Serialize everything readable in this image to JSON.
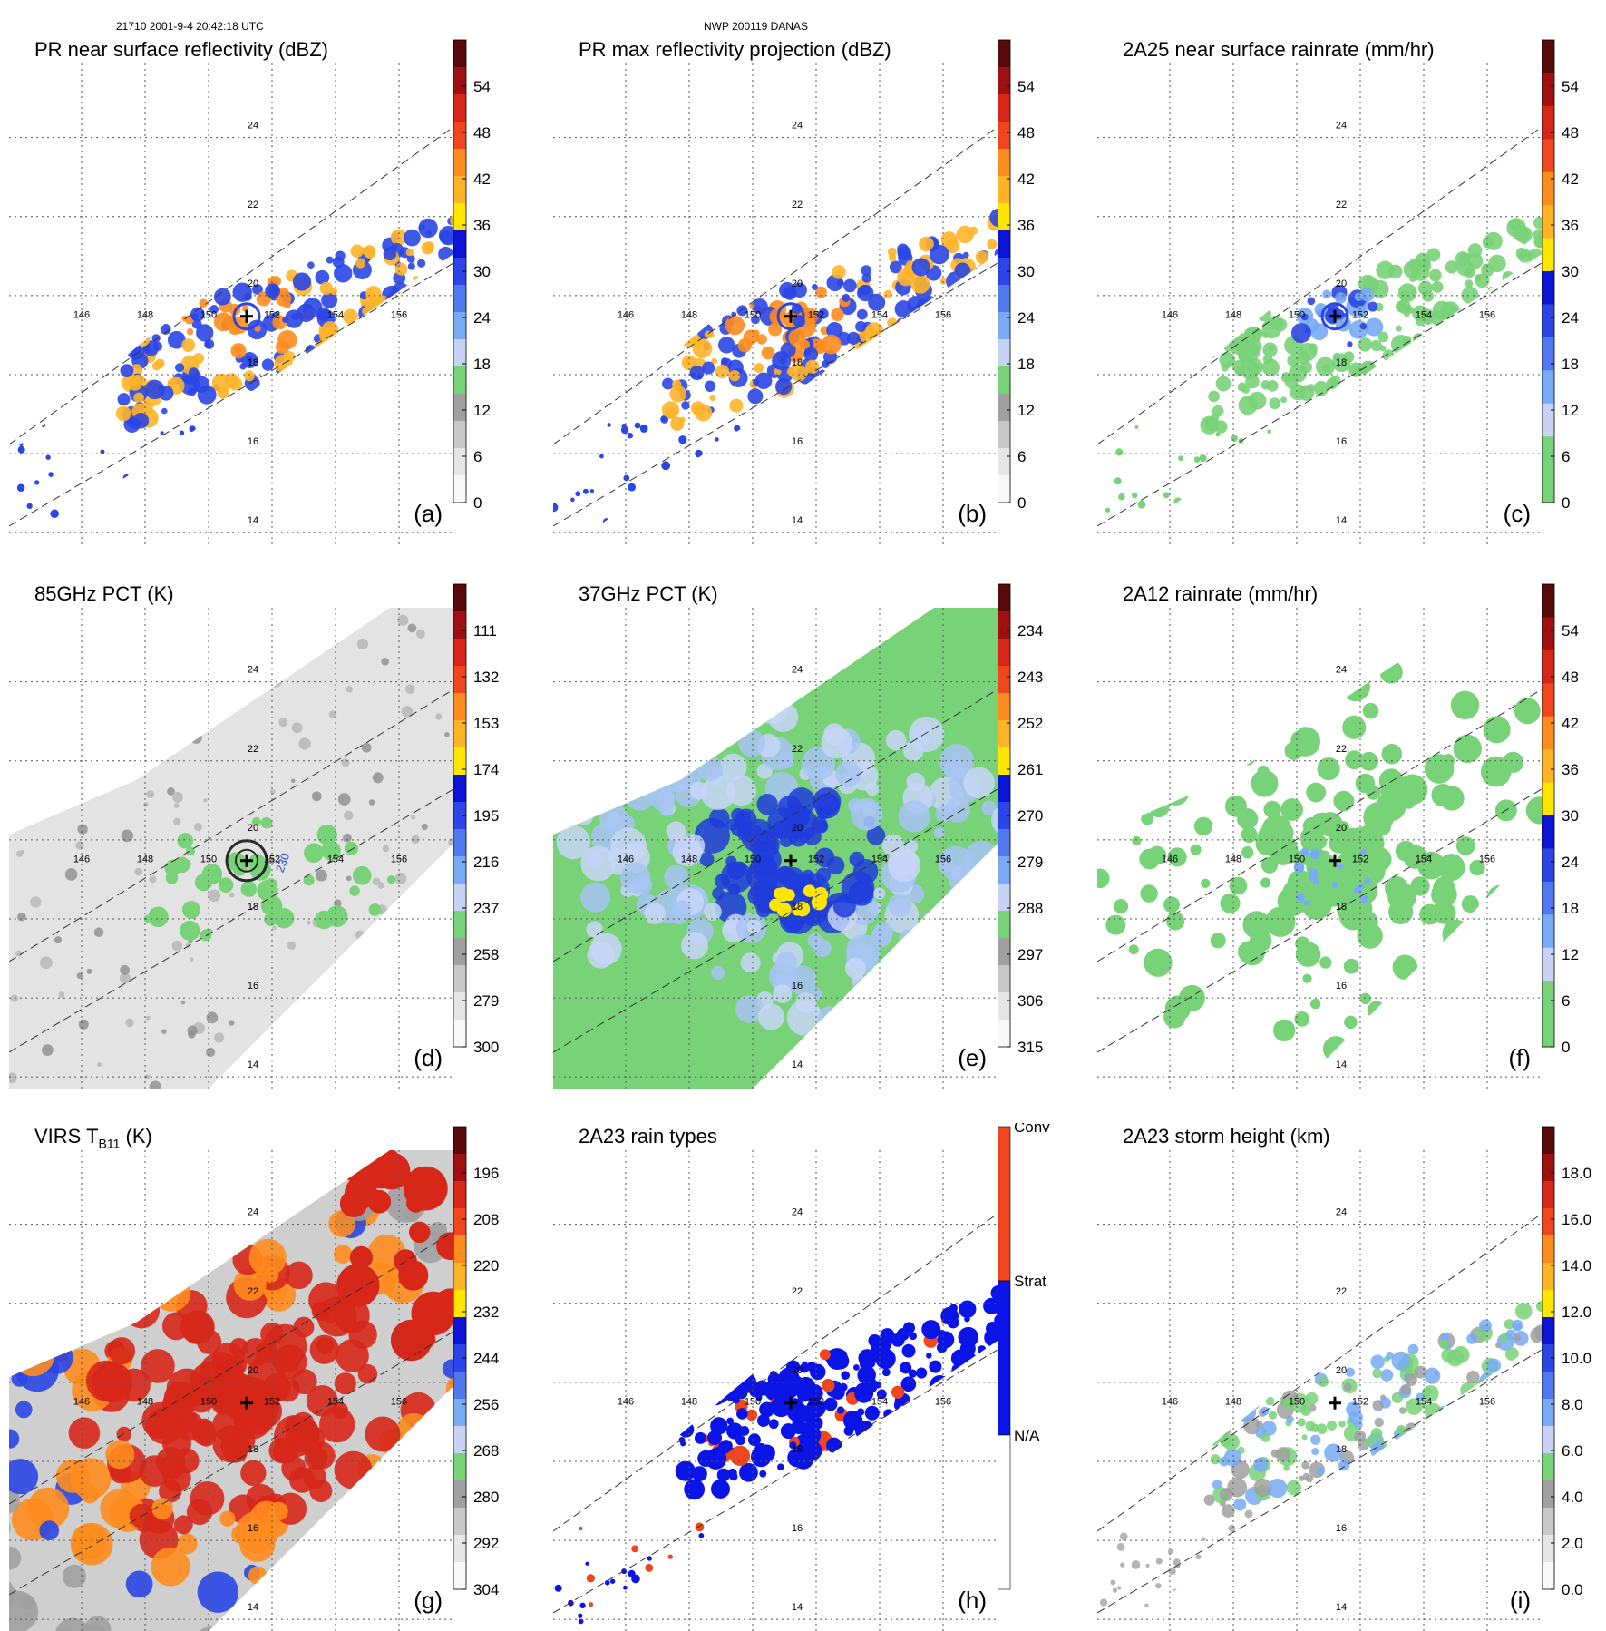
{
  "header": {
    "left": "21710 2001-9-4 20:42:18 UTC",
    "center": "NWP 200119 DANAS"
  },
  "colors": {
    "dark_red": "#5a0a0a",
    "red": "#d62718",
    "orange_red": "#f0461e",
    "orange": "#ff8c1e",
    "yellow": "#ffe600",
    "blue_dark": "#0a14d2",
    "blue": "#2a46e6",
    "blue_light": "#78aaf5",
    "blue_pale": "#c8d2f5",
    "green": "#78d278",
    "gray": "#a0a0a0",
    "gray_light": "#e6e6e6"
  },
  "chart_data": [
    {
      "id": "a",
      "type": "heatmap",
      "title": "PR near surface reflectivity (dBZ)",
      "label": "(a)",
      "swath": "narrow",
      "lon_ticks": [
        "146",
        "148",
        "150",
        "152",
        "154",
        "156"
      ],
      "lat_ticks": [
        "24",
        "22",
        "20",
        "18",
        "16",
        "14"
      ],
      "storm_center": {
        "lon": 151.2,
        "lat": 19.2
      },
      "colorbar": {
        "ticks": [
          "54",
          "48",
          "42",
          "36",
          "30",
          "24",
          "18",
          "12",
          "6",
          "0"
        ],
        "colors": [
          "#5a0a0a",
          "#a01010",
          "#d62718",
          "#f0461e",
          "#ff8c1e",
          "#ffb428",
          "#ffe600",
          "#0a14d2",
          "#2a46e6",
          "#5078f0",
          "#78aaf5",
          "#c8d2f5",
          "#78d278",
          "#a0a0a0",
          "#c8c8c8",
          "#e6e6e6",
          "#f8f8f8"
        ]
      }
    },
    {
      "id": "b",
      "type": "heatmap",
      "title": "PR max reflectivity projection (dBZ)",
      "label": "(b)",
      "swath": "narrow",
      "lon_ticks": [
        "146",
        "148",
        "150",
        "152",
        "154",
        "156"
      ],
      "lat_ticks": [
        "24",
        "22",
        "20",
        "18",
        "16",
        "14"
      ],
      "storm_center": {
        "lon": 151.2,
        "lat": 19.2
      },
      "colorbar": {
        "ticks": [
          "54",
          "48",
          "42",
          "36",
          "30",
          "24",
          "18",
          "12",
          "6",
          "0"
        ],
        "colors": [
          "#5a0a0a",
          "#a01010",
          "#d62718",
          "#f0461e",
          "#ff8c1e",
          "#ffb428",
          "#ffe600",
          "#0a14d2",
          "#2a46e6",
          "#5078f0",
          "#78aaf5",
          "#c8d2f5",
          "#78d278",
          "#a0a0a0",
          "#c8c8c8",
          "#e6e6e6",
          "#f8f8f8"
        ]
      }
    },
    {
      "id": "c",
      "type": "heatmap",
      "title": "2A25 near surface rainrate (mm/hr)",
      "label": "(c)",
      "swath": "narrow",
      "lon_ticks": [
        "146",
        "148",
        "150",
        "152",
        "154",
        "156"
      ],
      "lat_ticks": [
        "24",
        "22",
        "20",
        "18",
        "16",
        "14"
      ],
      "storm_center": {
        "lon": 151.2,
        "lat": 19.2
      },
      "colorbar": {
        "ticks": [
          "54",
          "48",
          "42",
          "36",
          "30",
          "24",
          "18",
          "12",
          "6",
          "0"
        ],
        "colors": [
          "#5a0a0a",
          "#a01010",
          "#d62718",
          "#f0461e",
          "#ff8c1e",
          "#ffb428",
          "#ffe600",
          "#0a14d2",
          "#2a46e6",
          "#5078f0",
          "#78aaf5",
          "#c8d2f5",
          "#78d278",
          "#78d278"
        ]
      }
    },
    {
      "id": "d",
      "type": "heatmap",
      "title": "85GHz PCT (K)",
      "label": "(d)",
      "swath": "wide",
      "lon_ticks": [
        "146",
        "148",
        "150",
        "152",
        "154",
        "156"
      ],
      "lat_ticks": [
        "24",
        "22",
        "20",
        "18",
        "16",
        "14"
      ],
      "storm_center": {
        "lon": 151.2,
        "lat": 19.2
      },
      "contour_annotation": "230",
      "colorbar": {
        "ticks": [
          "111",
          "132",
          "153",
          "174",
          "195",
          "216",
          "237",
          "258",
          "279",
          "300"
        ],
        "colors": [
          "#5a0a0a",
          "#a01010",
          "#d62718",
          "#f0461e",
          "#ff8c1e",
          "#ffb428",
          "#ffe600",
          "#0a14d2",
          "#2a46e6",
          "#5078f0",
          "#78aaf5",
          "#c8d2f5",
          "#78d278",
          "#a0a0a0",
          "#c8c8c8",
          "#e6e6e6",
          "#f8f8f8"
        ]
      }
    },
    {
      "id": "e",
      "type": "heatmap",
      "title": "37GHz PCT (K)",
      "label": "(e)",
      "swath": "wide",
      "lon_ticks": [
        "146",
        "148",
        "150",
        "152",
        "154",
        "156"
      ],
      "lat_ticks": [
        "24",
        "22",
        "20",
        "18",
        "16",
        "14"
      ],
      "storm_center": {
        "lon": 151.2,
        "lat": 19.2
      },
      "colorbar": {
        "ticks": [
          "234",
          "243",
          "252",
          "261",
          "270",
          "279",
          "288",
          "297",
          "306",
          "315"
        ],
        "colors": [
          "#5a0a0a",
          "#a01010",
          "#d62718",
          "#f0461e",
          "#ff8c1e",
          "#ffb428",
          "#ffe600",
          "#0a14d2",
          "#2a46e6",
          "#5078f0",
          "#78aaf5",
          "#c8d2f5",
          "#78d278",
          "#a0a0a0",
          "#c8c8c8",
          "#e6e6e6",
          "#f8f8f8"
        ]
      }
    },
    {
      "id": "f",
      "type": "heatmap",
      "title": "2A12 rainrate (mm/hr)",
      "label": "(f)",
      "swath": "wide",
      "lon_ticks": [
        "146",
        "148",
        "150",
        "152",
        "154",
        "156"
      ],
      "lat_ticks": [
        "24",
        "22",
        "20",
        "18",
        "16",
        "14"
      ],
      "storm_center": {
        "lon": 151.2,
        "lat": 19.2
      },
      "colorbar": {
        "ticks": [
          "54",
          "48",
          "42",
          "36",
          "30",
          "24",
          "18",
          "12",
          "6",
          "0"
        ],
        "colors": [
          "#5a0a0a",
          "#a01010",
          "#d62718",
          "#f0461e",
          "#ff8c1e",
          "#ffb428",
          "#ffe600",
          "#0a14d2",
          "#2a46e6",
          "#5078f0",
          "#78aaf5",
          "#c8d2f5",
          "#78d278",
          "#78d278"
        ]
      }
    },
    {
      "id": "g",
      "type": "heatmap",
      "title": "VIRS T",
      "title_sub": "B11",
      "title_unit": " (K)",
      "label": "(g)",
      "swath": "wide",
      "lon_ticks": [
        "146",
        "148",
        "150",
        "152",
        "154",
        "156"
      ],
      "lat_ticks": [
        "24",
        "22",
        "20",
        "18",
        "16",
        "14"
      ],
      "storm_center": {
        "lon": 151.2,
        "lat": 19.2
      },
      "colorbar": {
        "ticks": [
          "196",
          "208",
          "220",
          "232",
          "244",
          "256",
          "268",
          "280",
          "292",
          "304"
        ],
        "colors": [
          "#5a0a0a",
          "#a01010",
          "#d62718",
          "#f0461e",
          "#ff8c1e",
          "#ffb428",
          "#ffe600",
          "#0a14d2",
          "#2a46e6",
          "#5078f0",
          "#78aaf5",
          "#c8d2f5",
          "#78d278",
          "#a0a0a0",
          "#c8c8c8",
          "#e6e6e6",
          "#f8f8f8"
        ]
      }
    },
    {
      "id": "h",
      "type": "heatmap",
      "title": "2A23 rain types",
      "label": "(h)",
      "swath": "narrow",
      "lon_ticks": [
        "146",
        "148",
        "150",
        "152",
        "154",
        "156"
      ],
      "lat_ticks": [
        "24",
        "22",
        "20",
        "18",
        "16",
        "14"
      ],
      "storm_center": {
        "lon": 151.2,
        "lat": 19.2
      },
      "colorbar": {
        "categorical": true,
        "ticks": [
          "Conv",
          "Strat",
          "N/A"
        ],
        "colors": [
          "#f0461e",
          "#0a14e6",
          "#ffffff"
        ]
      }
    },
    {
      "id": "i",
      "type": "heatmap",
      "title": "2A23 storm height (km)",
      "label": "(i)",
      "swath": "narrow",
      "lon_ticks": [
        "146",
        "148",
        "150",
        "152",
        "154",
        "156"
      ],
      "lat_ticks": [
        "24",
        "22",
        "20",
        "18",
        "16",
        "14"
      ],
      "storm_center": {
        "lon": 151.2,
        "lat": 19.2
      },
      "colorbar": {
        "ticks": [
          "18.0",
          "16.0",
          "14.0",
          "12.0",
          "10.0",
          "8.0",
          "6.0",
          "4.0",
          "2.0",
          "0.0"
        ],
        "colors": [
          "#5a0a0a",
          "#a01010",
          "#d62718",
          "#f0461e",
          "#ff8c1e",
          "#ffb428",
          "#ffe600",
          "#0a14d2",
          "#2a46e6",
          "#5078f0",
          "#78aaf5",
          "#c8d2f5",
          "#78d278",
          "#a0a0a0",
          "#c8c8c8",
          "#e6e6e6",
          "#f8f8f8"
        ]
      }
    }
  ]
}
